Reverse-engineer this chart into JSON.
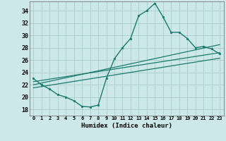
{
  "xlabel": "Humidex (Indice chaleur)",
  "background_color": "#cce8e8",
  "grid_color": "#aacccc",
  "line_color": "#1a7a6e",
  "xlim": [
    -0.5,
    23.5
  ],
  "ylim": [
    17,
    35.5
  ],
  "yticks": [
    18,
    20,
    22,
    24,
    26,
    28,
    30,
    32,
    34
  ],
  "xticks": [
    0,
    1,
    2,
    3,
    4,
    5,
    6,
    7,
    8,
    9,
    10,
    11,
    12,
    13,
    14,
    15,
    16,
    17,
    18,
    19,
    20,
    21,
    22,
    23
  ],
  "main_x": [
    0,
    1,
    2,
    3,
    4,
    5,
    6,
    7,
    8,
    9,
    10,
    11,
    12,
    13,
    14,
    15,
    16,
    17,
    18,
    19,
    20,
    21,
    22,
    23
  ],
  "main_y": [
    23.0,
    22.0,
    21.3,
    20.4,
    20.0,
    19.4,
    18.5,
    18.4,
    18.7,
    23.0,
    26.2,
    28.0,
    29.5,
    33.2,
    34.0,
    35.2,
    33.0,
    30.5,
    30.5,
    29.5,
    28.0,
    28.2,
    27.8,
    27.0
  ],
  "line1_x": [
    0,
    23
  ],
  "line1_y": [
    22.5,
    27.2
  ],
  "line2_x": [
    0,
    23
  ],
  "line2_y": [
    22.0,
    28.5
  ],
  "line3_x": [
    0,
    23
  ],
  "line3_y": [
    21.5,
    26.3
  ]
}
